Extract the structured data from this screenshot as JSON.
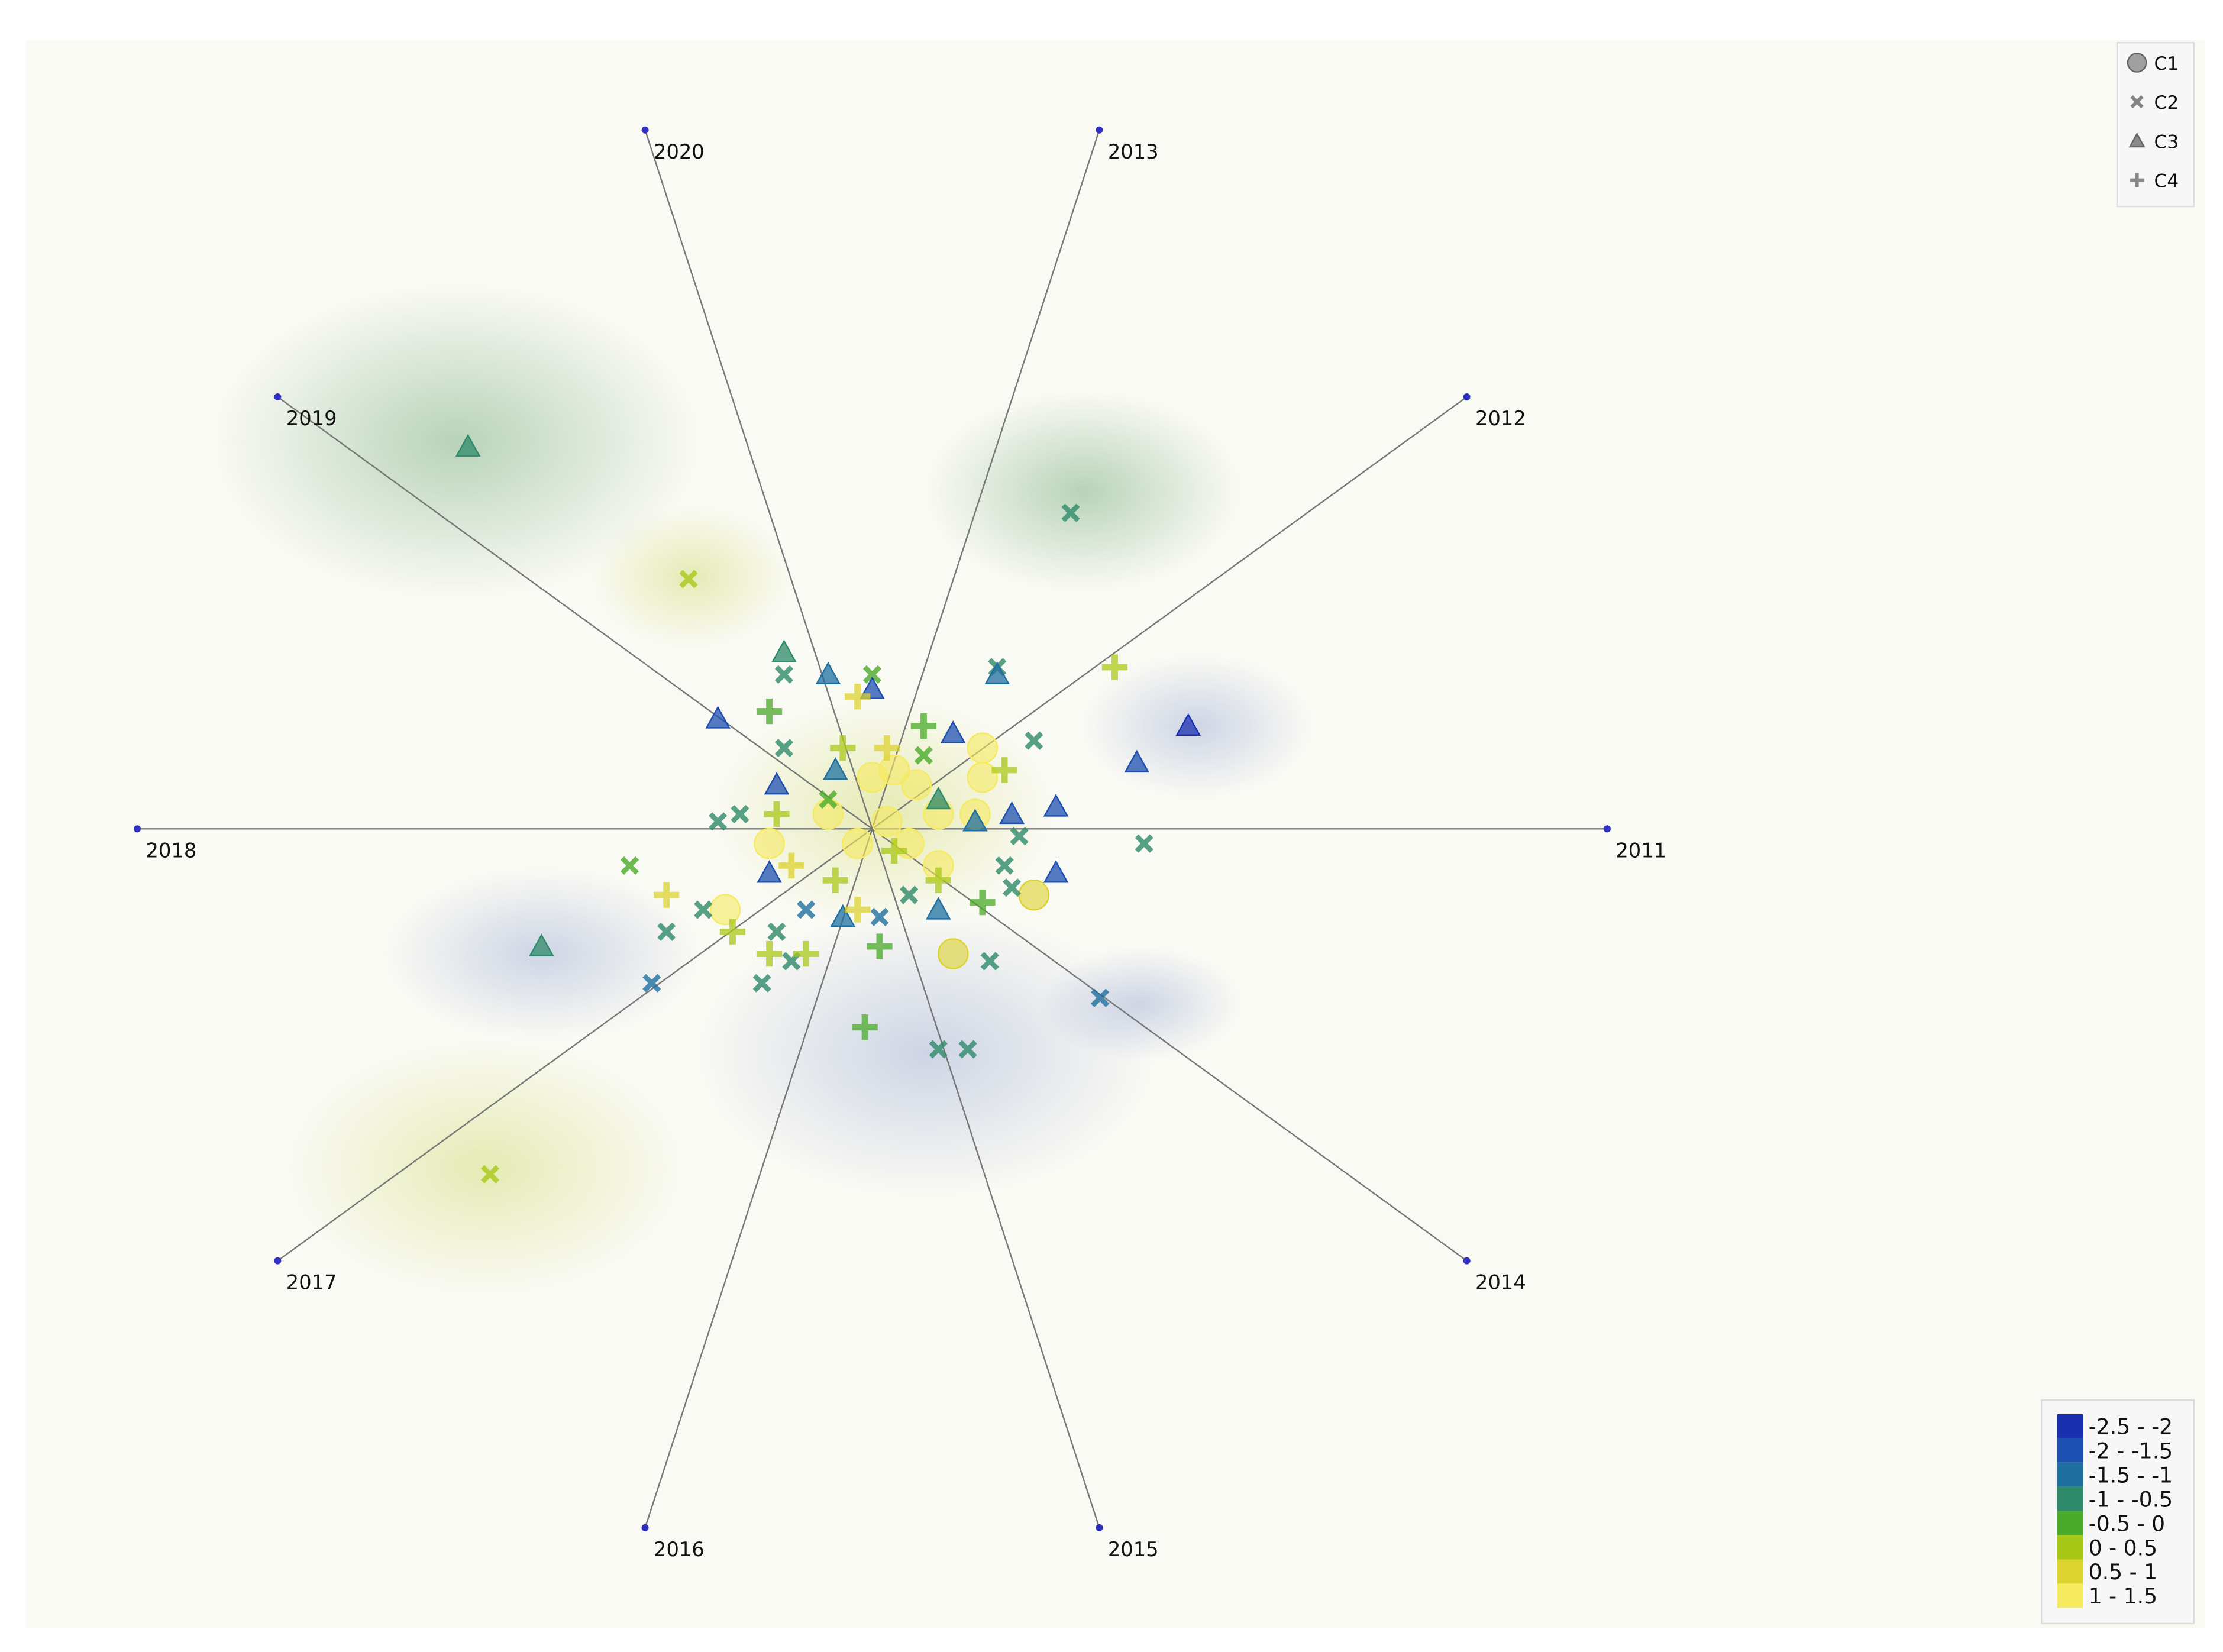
{
  "chart_data": {
    "type": "scatter",
    "anchors": [
      "2011",
      "2012",
      "2013",
      "2020",
      "2019",
      "2018",
      "2017",
      "2016",
      "2015",
      "2014"
    ],
    "xlim": [
      -1,
      1
    ],
    "ylim": [
      -1,
      1
    ],
    "series": [
      {
        "name": "C1",
        "marker": "circle",
        "x": [
          0.22,
          0.11,
          -0.2,
          0.15,
          0.15,
          0.14,
          -0.14,
          -0.06,
          0.0,
          0.03,
          0.06,
          0.09,
          -0.02,
          0.05,
          0.09,
          0.02
        ],
        "y": [
          -0.09,
          -0.17,
          -0.11,
          0.11,
          0.07,
          0.02,
          -0.02,
          0.02,
          0.07,
          0.08,
          0.06,
          0.02,
          -0.02,
          -0.02,
          -0.05,
          0.01
        ],
        "z": [
          0.8,
          1.0,
          1.3,
          1.4,
          1.3,
          1.2,
          1.3,
          1.4,
          1.4,
          1.4,
          1.3,
          1.2,
          1.4,
          1.3,
          1.1,
          1.4
        ]
      },
      {
        "name": "C2",
        "marker": "cross",
        "x": [
          0.27,
          -0.25,
          -0.52,
          0.31,
          0.37,
          -0.3,
          -0.33,
          0.09,
          0.13,
          0.16,
          0.17,
          0.22,
          -0.12,
          0.0,
          -0.12,
          -0.18,
          -0.21,
          -0.28,
          -0.23,
          -0.15,
          -0.11,
          -0.09,
          0.01,
          0.05,
          0.19,
          0.18,
          0.2,
          -0.06,
          0.07,
          -0.13
        ],
        "y": [
          0.43,
          0.34,
          -0.47,
          -0.23,
          -0.02,
          -0.21,
          -0.05,
          -0.3,
          -0.3,
          -0.18,
          0.22,
          0.12,
          0.21,
          0.21,
          0.11,
          0.02,
          0.01,
          -0.14,
          -0.11,
          -0.21,
          -0.18,
          -0.11,
          -0.12,
          -0.09,
          -0.08,
          -0.05,
          -0.01,
          0.04,
          0.1,
          -0.14
        ],
        "z": [
          -0.9,
          0.2,
          0.3,
          -1.4,
          -0.9,
          -1.0,
          -0.4,
          -0.8,
          -0.8,
          -0.9,
          -0.5,
          -0.9,
          -0.5,
          -0.2,
          -0.6,
          -0.5,
          -0.7,
          -0.6,
          -0.7,
          -0.9,
          -0.9,
          -1.1,
          -1.0,
          -0.9,
          -0.7,
          -0.6,
          -0.9,
          -0.4,
          -0.4,
          -0.6
        ]
      },
      {
        "name": "C3",
        "marker": "triangle",
        "x": [
          -0.55,
          -0.45,
          -0.12,
          -0.06,
          -0.21,
          0.43,
          0.36,
          0.25,
          0.25,
          0.19,
          0.11,
          0.17,
          0.09,
          -0.14,
          -0.04,
          0.0,
          -0.13,
          -0.05,
          0.14,
          0.09
        ],
        "y": [
          0.52,
          -0.16,
          0.24,
          0.21,
          0.15,
          0.14,
          0.09,
          0.03,
          -0.06,
          0.02,
          0.13,
          0.21,
          -0.11,
          -0.06,
          -0.12,
          0.19,
          0.06,
          0.08,
          0.01,
          0.04
        ],
        "z": [
          -0.5,
          -0.8,
          -0.6,
          -1.3,
          -1.5,
          -2.0,
          -1.8,
          -1.6,
          -1.6,
          -1.5,
          -1.6,
          -1.4,
          -1.3,
          -1.6,
          -1.3,
          -1.5,
          -1.6,
          -1.2,
          -1.0,
          -0.7
        ]
      },
      {
        "name": "C4",
        "marker": "plus",
        "x": [
          0.33,
          -0.01,
          0.01,
          -0.14,
          -0.02,
          -0.28,
          -0.19,
          -0.14,
          -0.09,
          0.15,
          0.18,
          0.07,
          0.02,
          -0.13,
          -0.05,
          -0.02,
          -0.11,
          -0.04,
          0.09,
          0.03
        ],
        "y": [
          0.22,
          -0.27,
          -0.16,
          0.16,
          0.18,
          -0.09,
          -0.14,
          -0.17,
          -0.17,
          -0.1,
          0.08,
          0.14,
          0.11,
          0.02,
          -0.07,
          -0.11,
          -0.05,
          0.11,
          -0.07,
          -0.03
        ],
        "z": [
          0.3,
          -0.4,
          -0.3,
          0.0,
          0.6,
          0.6,
          0.5,
          0.2,
          0.3,
          -0.2,
          0.5,
          -0.1,
          0.8,
          0.5,
          0.3,
          0.7,
          0.6,
          0.4,
          0.4,
          0.2
        ]
      }
    ],
    "color_bins": [
      -2.5,
      -2,
      -1.5,
      -1,
      -0.5,
      0,
      0.5,
      1,
      1.5
    ],
    "color_labels": [
      "-2.5 - -2",
      "-2 - -1.5",
      "-1.5 - -1",
      "-1 - -0.5",
      "-0.5 - 0",
      "0 - 0.5",
      "0.5 - 1",
      "1 - 1.5"
    ],
    "colors": [
      "#1a2fb0",
      "#1d4fb0",
      "#1f6fa0",
      "#2e8a6a",
      "#4aaa2a",
      "#a8c818",
      "#dcd230",
      "#f5ea60"
    ],
    "legend_position": "top-right"
  }
}
